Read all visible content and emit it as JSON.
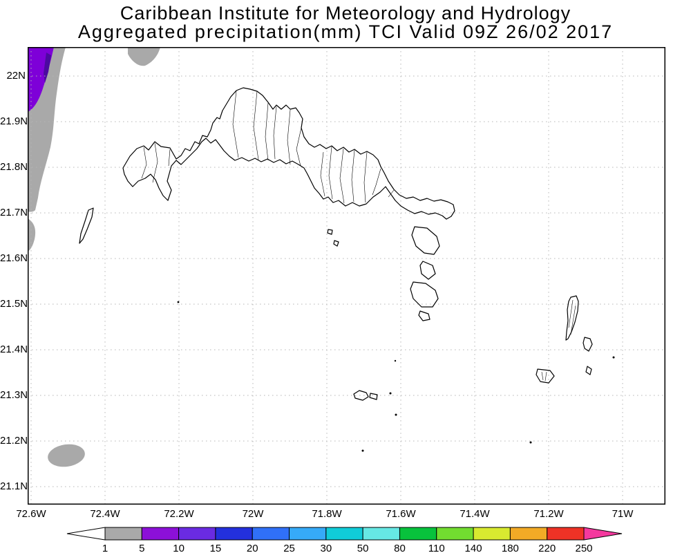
{
  "header": {
    "title_line1": "Caribbean Institute for Meteorology and Hydrology",
    "title_line2": "Aggregated precipitation(mm) TCI Valid 09Z 26/02 2017"
  },
  "map": {
    "lat_labels": [
      "22N",
      "21.9N",
      "21.8N",
      "21.7N",
      "21.6N",
      "21.5N",
      "21.4N",
      "21.3N",
      "21.2N",
      "21.1N"
    ],
    "lon_labels": [
      "72.6W",
      "72.4W",
      "72.2W",
      "72W",
      "71.8W",
      "71.6W",
      "71.4W",
      "71.2W",
      "71W"
    ]
  },
  "shading": {
    "regions": [
      {
        "name": "northwest-gray-band",
        "value_range_mm": "1-5",
        "color": "#a9a9a9"
      },
      {
        "name": "northwest-purple-patch",
        "value_range_mm": "5-10",
        "color": "#7e00d8"
      },
      {
        "name": "northwest-purple-core",
        "value_range_mm": "10-15",
        "color": "#4b0aa0"
      },
      {
        "name": "north-edge-gray-patch",
        "value_range_mm": "1-5",
        "color": "#a9a9a9"
      },
      {
        "name": "southwest-gray-blob",
        "value_range_mm": "1-5",
        "color": "#a9a9a9"
      }
    ]
  },
  "colorbar": {
    "tick_labels": [
      "1",
      "5",
      "10",
      "15",
      "20",
      "25",
      "30",
      "50",
      "80",
      "110",
      "140",
      "180",
      "220",
      "250"
    ],
    "arrow_left_color": "#ffffff",
    "arrow_right_color": "#f4399e",
    "box_colors": [
      "#a9a9a9",
      "#8c10d8",
      "#6a2be2",
      "#2330dd",
      "#3070f8",
      "#36aaf8",
      "#10ccd8",
      "#66e8e4",
      "#08c23c",
      "#72dd30",
      "#d8ea30",
      "#f2aa26",
      "#ee3226"
    ],
    "ranges": [
      "<1",
      "1-5",
      "5-10",
      "10-15",
      "15-20",
      "20-25",
      "25-30",
      "30-50",
      "50-80",
      "80-110",
      "110-140",
      "140-180",
      "180-220",
      "220-250",
      ">250"
    ]
  },
  "chart_data": {
    "type": "heatmap",
    "title": "Aggregated precipitation(mm) TCI Valid 09Z 26/02 2017",
    "source": "Caribbean Institute for Meteorology and Hydrology",
    "lat_ticks": [
      "22N",
      "21.9N",
      "21.8N",
      "21.7N",
      "21.6N",
      "21.5N",
      "21.4N",
      "21.3N",
      "21.2N",
      "21.1N"
    ],
    "lon_ticks": [
      "72.6W",
      "72.4W",
      "72.2W",
      "72W",
      "71.8W",
      "71.6W",
      "71.4W",
      "71.2W",
      "71W"
    ],
    "scale_mm": [
      1,
      5,
      10,
      15,
      20,
      25,
      30,
      50,
      80,
      110,
      140,
      180,
      220,
      250
    ],
    "grid": "dotted",
    "legend_position": "bottom",
    "shaded_values": [
      {
        "area": "northwest corner / west edge",
        "precip_mm": "1-5"
      },
      {
        "area": "far northwest corner",
        "precip_mm": "5-15"
      },
      {
        "area": "north edge near 72.25W",
        "precip_mm": "1-5"
      },
      {
        "area": "southwest near 72.5W 21.17N",
        "precip_mm": "1-5"
      }
    ]
  }
}
